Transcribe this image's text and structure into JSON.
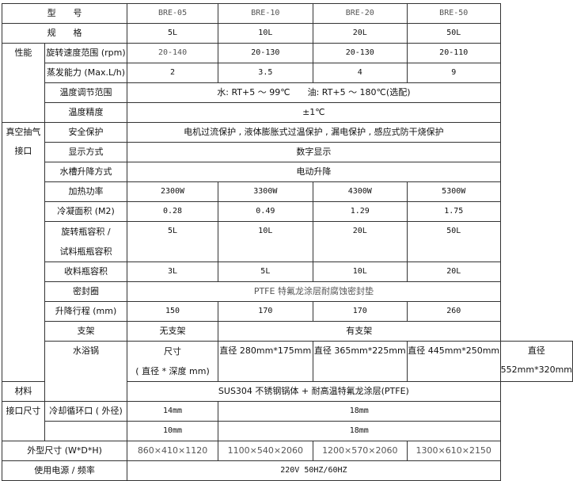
{
  "header": {
    "model_label": "型　　号",
    "spec_label": "规　　格",
    "models": [
      "BRE-05",
      "BRE-10",
      "BRE-20",
      "BRE-50"
    ],
    "specs": [
      "5L",
      "10L",
      "20L",
      "50L"
    ]
  },
  "performance": {
    "group": "性能",
    "speed_label": "旋转速度范围 (rpm)",
    "speed": [
      "20-140",
      "20-130",
      "20-130",
      "20-110"
    ],
    "evap_label": "蒸发能力 (Max.L/h)",
    "evap": [
      "2",
      "3.5",
      "4",
      "9"
    ],
    "temp_range_label": "温度调节范围",
    "temp_range": "水: RT+5 ～ 99℃　　油: RT+5 ～ 180℃(选配)",
    "temp_acc_label": "温度精度",
    "temp_acc": "±1℃"
  },
  "vacuum": {
    "group": "真空抽气 接口",
    "safety_label": "安全保护",
    "safety": "电机过流保护 , 液体膨胀式过温保护 , 漏电保护 , 感应式防干烧保护",
    "display_label": "显示方式",
    "display": "数字显示",
    "lift_label": "水槽升降方式",
    "lift": "电动升降",
    "heat_label": "加热功率",
    "heat": [
      "2300W",
      "3300W",
      "4300W",
      "5300W"
    ],
    "cond_label": "冷凝面积 (M2)",
    "cond": [
      "0.28",
      "0.49",
      "1.29",
      "1.75"
    ],
    "flask_label1": "旋转瓶容积 /",
    "flask_label2": "试料瓶瓶容积",
    "flask": [
      "5L",
      "10L",
      "20L",
      "50L"
    ],
    "recv_label": "收料瓶容积",
    "recv": [
      "3L",
      "5L",
      "10L",
      "20L"
    ],
    "seal_label": "密封圈",
    "seal": "PTFE 特氟龙涂层耐腐蚀密封垫",
    "stroke_label": "升降行程 (mm)",
    "stroke": [
      "150",
      "170",
      "170",
      "260"
    ],
    "stand_label": "支架",
    "stand": [
      "无支架",
      "有支架"
    ]
  },
  "bath": {
    "group": "水浴锅",
    "size_label1": "尺寸",
    "size_label2": "( 直径 * 深度 mm)",
    "size": [
      "直径 280mm*175mm",
      "直径 365mm*225mm",
      "直径 445mm*250mm",
      "直径 552mm*320mm"
    ],
    "material_label": "材料",
    "material": "SUS304 不锈钢锅体 + 耐高温特氟龙涂层(PTFE)"
  },
  "ports": {
    "group": "接口尺寸",
    "cool_label": "冷却循环口 ( 外径)",
    "cool": [
      "14mm",
      "18mm"
    ],
    "second": [
      "10mm",
      "18mm"
    ]
  },
  "dims": {
    "label": "外型尺寸 (W*D*H)",
    "values": [
      "860×410×1120",
      "1100×540×2060",
      "1200×570×2060",
      "1300×610×2150"
    ]
  },
  "power": {
    "label": "使用电源 / 频率",
    "value": "220V 50HZ/60HZ"
  }
}
